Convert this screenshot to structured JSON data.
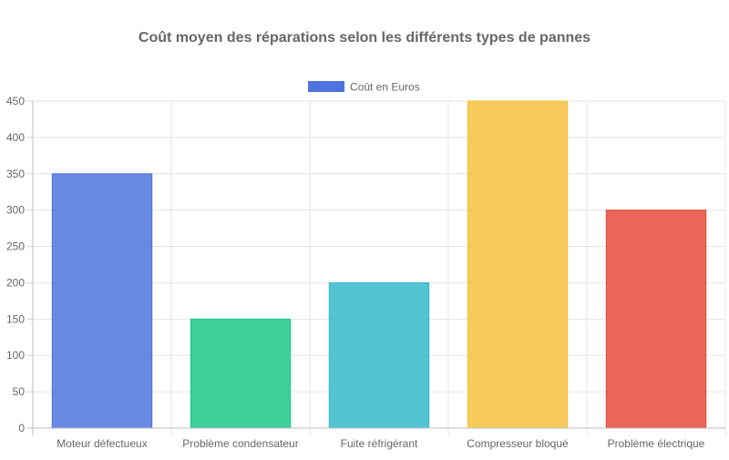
{
  "chart_data": {
    "type": "bar",
    "title": "Coût moyen des réparations selon les différents types de pannes",
    "categories": [
      "Moteur défectueux",
      "Problème condensateur",
      "Fuite réfrigérant",
      "Compresseur bloqué",
      "Problème électrique"
    ],
    "series": [
      {
        "name": "Coût en Euros",
        "values": [
          350,
          150,
          200,
          450,
          300
        ],
        "colors": [
          "#4e73df",
          "#1cc88a",
          "#36b9cc",
          "#f6c23e",
          "#e74a3b"
        ]
      }
    ],
    "ylim": [
      0,
      450
    ],
    "yticks": [
      0,
      50,
      100,
      150,
      200,
      250,
      300,
      350,
      400,
      450
    ],
    "grid": true,
    "legend": "top-center"
  }
}
